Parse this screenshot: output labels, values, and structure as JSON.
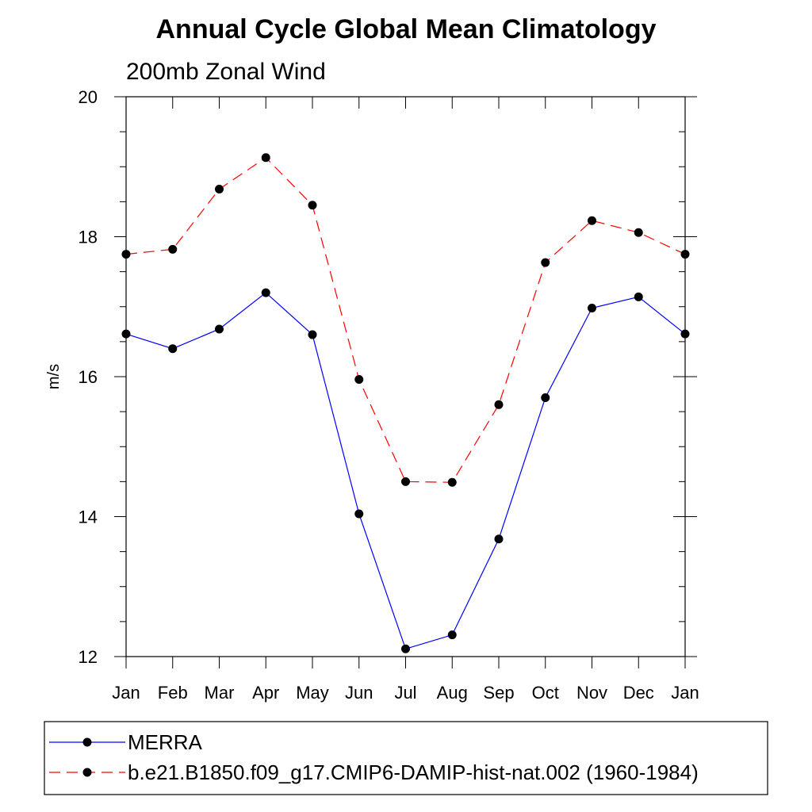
{
  "chart_data": {
    "type": "line",
    "title": "Annual Cycle Global Mean Climatology",
    "subtitle": "200mb Zonal Wind",
    "ylabel": "m/s",
    "xlabel": "",
    "categories": [
      "Jan",
      "Feb",
      "Mar",
      "Apr",
      "May",
      "Jun",
      "Jul",
      "Aug",
      "Sep",
      "Oct",
      "Nov",
      "Dec",
      "Jan"
    ],
    "ylim": [
      12,
      20
    ],
    "yticks": [
      12,
      14,
      16,
      18,
      20
    ],
    "yminor_step": 0.5,
    "grid": false,
    "legend_position": "bottom",
    "series": [
      {
        "name": "MERRA",
        "color": "#0000ff",
        "style": "solid",
        "marker": "filled-circle",
        "values": [
          16.61,
          16.4,
          16.68,
          17.2,
          16.6,
          14.04,
          12.11,
          12.31,
          13.68,
          15.7,
          16.98,
          17.14,
          16.61
        ]
      },
      {
        "name": "b.e21.B1850.f09_g17.CMIP6-DAMIP-hist-nat.002 (1960-1984)",
        "color": "#ff0000",
        "style": "dashed",
        "marker": "filled-circle",
        "values": [
          17.75,
          17.82,
          18.68,
          19.13,
          18.45,
          15.96,
          14.5,
          14.49,
          15.6,
          17.63,
          18.23,
          18.06,
          17.75
        ]
      }
    ]
  }
}
